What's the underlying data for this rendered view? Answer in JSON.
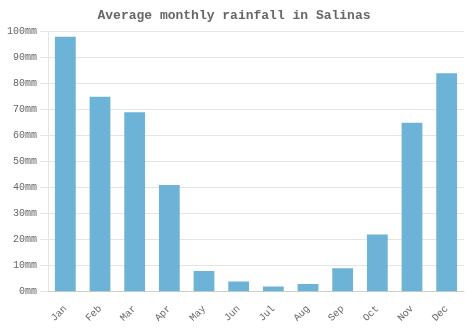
{
  "chart_data": {
    "type": "bar",
    "title": "Average monthly rainfall in Salinas",
    "categories": [
      "Jan",
      "Feb",
      "Mar",
      "Apr",
      "May",
      "Jun",
      "Jul",
      "Aug",
      "Sep",
      "Oct",
      "Nov",
      "Dec"
    ],
    "values": [
      98,
      75,
      69,
      41,
      8,
      4,
      2,
      3,
      9,
      22,
      65,
      84
    ],
    "color": "#6db3d8",
    "ylim": [
      0,
      100
    ],
    "yticks": [
      {
        "value": 0,
        "label": "0mm"
      },
      {
        "value": 10,
        "label": "10mm"
      },
      {
        "value": 20,
        "label": "20mm"
      },
      {
        "value": 30,
        "label": "30mm"
      },
      {
        "value": 40,
        "label": "40mm"
      },
      {
        "value": 50,
        "label": "50mm"
      },
      {
        "value": 60,
        "label": "60mm"
      },
      {
        "value": 70,
        "label": "70mm"
      },
      {
        "value": 80,
        "label": "80mm"
      },
      {
        "value": 90,
        "label": "90mm"
      },
      {
        "value": 100,
        "label": "100mm"
      }
    ],
    "grid": true
  }
}
